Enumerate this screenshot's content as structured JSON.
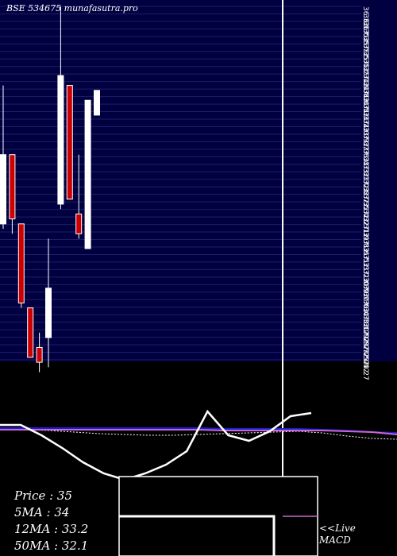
{
  "header": {
    "title": "BSE 534675 munafasutra.pro"
  },
  "colors": {
    "background": "#000000",
    "grid_band": "#000040",
    "grid_line": "#1e1e66",
    "bull": "#ffffff",
    "bear": "#cc0000",
    "ma_blue": "#1f1fd6",
    "ma_pink": "#cc66cc",
    "macd_box": "#ffffff"
  },
  "stats": {
    "price": "Price   : 35",
    "ma5": "5MA : 34",
    "ma12": "12MA : 33.2",
    "ma50": "50MA : 32.1"
  },
  "live_label": "<<Live",
  "macd_label": "MACD",
  "chart_data": {
    "type": "candlestick",
    "title": "BSE 534675 munafasutra.pro",
    "axis_labels": [
      "36.32",
      "36.17",
      "36.02",
      "35.87",
      "35.72",
      "35.57",
      "35.42",
      "35.27",
      "35.12",
      "34.97",
      "34.82",
      "34.67",
      "34.52",
      "34.37",
      "34.22",
      "34.07",
      "33.92",
      "33.77",
      "33.62",
      "33.47",
      "33.32",
      "33.17",
      "33.02",
      "32.87",
      "32.72",
      "32.57",
      "32.42",
      "32.27",
      "32.12",
      "31.97",
      "31.82",
      "31.67",
      "31.52",
      "31.37",
      "31.22",
      "31.07",
      "30.92",
      "30.77",
      "30.62",
      "30.47",
      "30.32",
      "30.17",
      "30.02",
      "29.87",
      "29.72",
      "29.57",
      "29.42",
      "29.27"
    ],
    "ylim": [
      29.25,
      36.4
    ],
    "candles": [
      {
        "open": 32.0,
        "high": 34.8,
        "close": 33.4,
        "low": 31.9
      },
      {
        "open": 33.4,
        "high": 33.4,
        "close": 32.1,
        "low": 31.8
      },
      {
        "open": 32.0,
        "high": 32.0,
        "close": 30.4,
        "low": 30.3
      },
      {
        "open": 30.3,
        "high": 30.3,
        "close": 29.3,
        "low": 29.3
      },
      {
        "open": 29.5,
        "high": 29.8,
        "close": 29.2,
        "low": 29.0
      },
      {
        "open": 29.7,
        "high": 31.7,
        "close": 30.7,
        "low": 29.1
      },
      {
        "open": 32.4,
        "high": 36.4,
        "close": 35.0,
        "low": 32.3
      },
      {
        "open": 34.8,
        "high": 34.8,
        "close": 32.5,
        "low": 32.5
      },
      {
        "open": 32.2,
        "high": 33.4,
        "close": 31.8,
        "low": 31.7
      },
      {
        "open": 31.5,
        "high": 34.5,
        "close": 34.5,
        "low": 31.5
      },
      {
        "open": 34.2,
        "high": 34.7,
        "close": 34.7,
        "low": 34.2
      }
    ],
    "lower_panel": {
      "price_line": [
        5,
        5,
        18,
        34,
        52,
        66,
        74,
        66,
        55,
        38,
        -12,
        18,
        25,
        13,
        -6,
        -10
      ],
      "ma_blue": [
        9,
        9,
        9,
        9,
        9,
        9,
        9,
        9,
        9,
        10,
        10,
        10,
        10,
        11,
        12,
        14,
        15
      ],
      "ma_pink": [
        11,
        11,
        11,
        11,
        11,
        11,
        11,
        11,
        11,
        12,
        12,
        12,
        12,
        12,
        13,
        14,
        17
      ],
      "ma_dotted": [
        10,
        11,
        12,
        14,
        16,
        17,
        18,
        18,
        17,
        16,
        15,
        14,
        13,
        15,
        19,
        22,
        23
      ]
    }
  }
}
